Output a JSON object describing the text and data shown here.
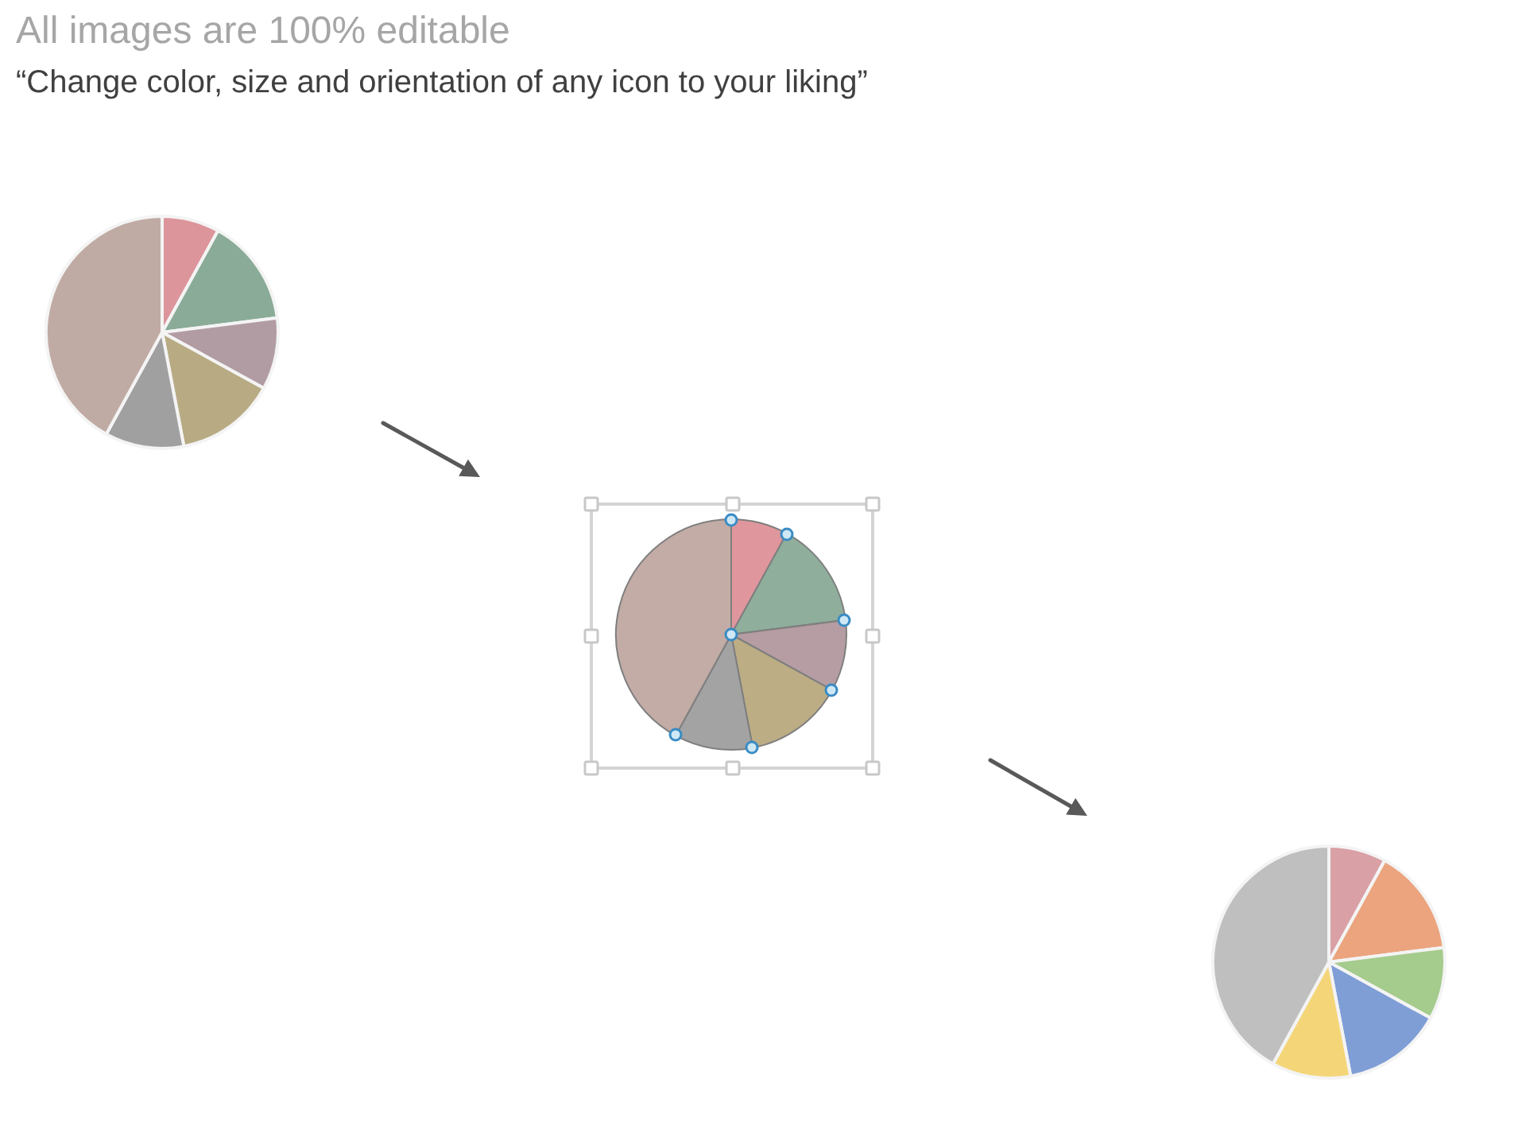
{
  "chart_data": [
    {
      "type": "pie",
      "title": "All images are 100% editable",
      "subtitle": "“Change color, size and orientation of any icon to your liking”",
      "categories": [
        null,
        null,
        null,
        null,
        null,
        null
      ],
      "values": [
        8,
        15,
        10,
        14,
        11,
        42
      ],
      "colors": [
        "#dc959b",
        "#8aab98",
        "#b29ca3",
        "#b8ab84",
        "#a0a0a0",
        "#c0aba4"
      ]
    },
    {
      "type": "pie",
      "categories": [
        null,
        null,
        null,
        null,
        null,
        null
      ],
      "values": [
        8,
        15,
        10,
        14,
        11,
        42
      ],
      "colors": [
        "#df979d",
        "#8fae9c",
        "#b59da3",
        "#bcad85",
        "#a3a3a3",
        "#c2aca5"
      ]
    },
    {
      "type": "pie",
      "categories": [
        null,
        null,
        null,
        null,
        null,
        null
      ],
      "values": [
        8,
        15,
        10,
        14,
        11,
        42
      ],
      "colors": [
        "#d9a0a6",
        "#eba47e",
        "#a5cb8d",
        "#7f9ed6",
        "#f4d679",
        "#bfbfbf"
      ]
    }
  ]
}
